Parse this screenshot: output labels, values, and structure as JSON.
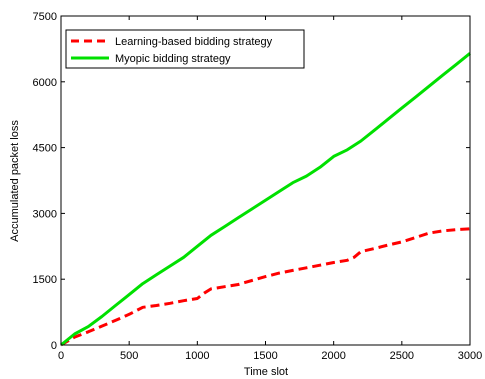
{
  "chart_data": {
    "type": "line",
    "xlabel": "Time slot",
    "ylabel": "Accumulated packet loss",
    "xlim": [
      0,
      3000
    ],
    "ylim": [
      0,
      7500
    ],
    "xticks": [
      0,
      500,
      1000,
      1500,
      2000,
      2500,
      3000
    ],
    "yticks": [
      0,
      1500,
      3000,
      4500,
      6000,
      7500
    ],
    "grid": false,
    "legend_position": "top-left",
    "series": [
      {
        "name": "Learning-based bidding strategy",
        "color": "#ff0000",
        "style": "dashed",
        "x": [
          0,
          100,
          200,
          300,
          400,
          500,
          600,
          700,
          800,
          900,
          1000,
          1050,
          1100,
          1200,
          1300,
          1400,
          1500,
          1600,
          1700,
          1800,
          1900,
          2000,
          2100,
          2150,
          2200,
          2300,
          2400,
          2500,
          2600,
          2700,
          2800,
          2900,
          3000
        ],
        "y": [
          0,
          180,
          300,
          430,
          560,
          700,
          860,
          900,
          950,
          1010,
          1060,
          1180,
          1280,
          1330,
          1380,
          1470,
          1560,
          1640,
          1700,
          1760,
          1820,
          1880,
          1930,
          2000,
          2130,
          2200,
          2280,
          2350,
          2450,
          2550,
          2600,
          2630,
          2650
        ]
      },
      {
        "name": "Myopic bidding strategy",
        "color": "#00e000",
        "style": "solid",
        "x": [
          0,
          100,
          200,
          300,
          400,
          500,
          600,
          700,
          800,
          900,
          1000,
          1100,
          1200,
          1300,
          1400,
          1500,
          1600,
          1700,
          1800,
          1900,
          2000,
          2100,
          2200,
          2300,
          2400,
          2500,
          2600,
          2700,
          2800,
          2900,
          3000
        ],
        "y": [
          0,
          250,
          420,
          650,
          900,
          1150,
          1400,
          1600,
          1800,
          2000,
          2250,
          2500,
          2700,
          2900,
          3100,
          3300,
          3500,
          3700,
          3850,
          4050,
          4300,
          4450,
          4650,
          4900,
          5150,
          5400,
          5650,
          5900,
          6150,
          6400,
          6650
        ]
      }
    ]
  }
}
